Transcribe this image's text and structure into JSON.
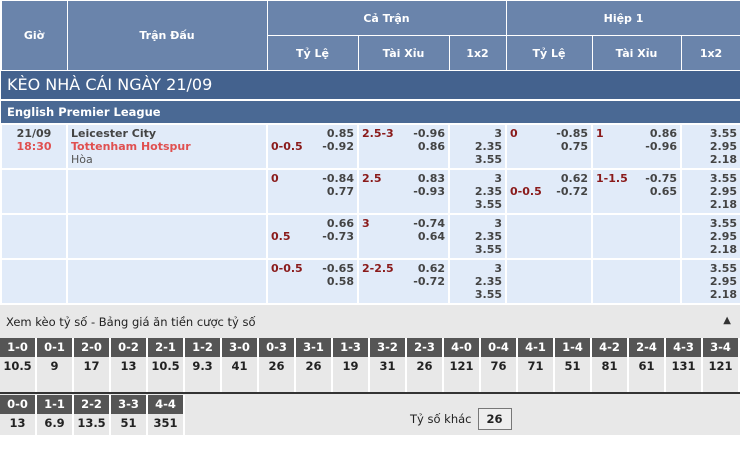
{
  "header": {
    "gio": "Giờ",
    "tran_dau": "Trận Đấu",
    "ca_tran": "Cả Trận",
    "hiep1": "Hiệp 1",
    "ty_le": "Tỷ Lệ",
    "tai_xiu": "Tài Xỉu",
    "x12": "1x2"
  },
  "title": "KÈO NHÀ CÁI NGÀY 21/09",
  "league": "English Premier League",
  "match": {
    "date": "21/09",
    "time": "18:30",
    "home": "Leicester City",
    "away": "Tottenham Hotspur",
    "draw": "Hòa"
  },
  "rows": [
    {
      "ft_hdp": "0-0.5",
      "ft_hdp_line": 2,
      "ft_hdp_odds": [
        "0.85",
        "-0.92"
      ],
      "ft_ou": "2.5-3",
      "ft_ou_odds": [
        "-0.96",
        "0.86"
      ],
      "ft_1x2": [
        "3",
        "2.35",
        "3.55"
      ],
      "h1_hdp": "0",
      "h1_hdp_line": 1,
      "h1_hdp_odds": [
        "-0.85",
        "0.75"
      ],
      "h1_ou": "1",
      "h1_ou_odds": [
        "0.86",
        "-0.96"
      ],
      "h1_1x2": [
        "3.55",
        "2.95",
        "2.18"
      ]
    },
    {
      "ft_hdp": "0",
      "ft_hdp_line": 1,
      "ft_hdp_odds": [
        "-0.84",
        "0.77"
      ],
      "ft_ou": "2.5",
      "ft_ou_odds": [
        "0.83",
        "-0.93"
      ],
      "ft_1x2": [
        "3",
        "2.35",
        "3.55"
      ],
      "h1_hdp": "0-0.5",
      "h1_hdp_line": 2,
      "h1_hdp_odds": [
        "0.62",
        "-0.72"
      ],
      "h1_ou": "1-1.5",
      "h1_ou_odds": [
        "-0.75",
        "0.65"
      ],
      "h1_1x2": [
        "3.55",
        "2.95",
        "2.18"
      ]
    },
    {
      "ft_hdp": "0.5",
      "ft_hdp_line": 2,
      "ft_hdp_odds": [
        "0.66",
        "-0.73"
      ],
      "ft_ou": "3",
      "ft_ou_odds": [
        "-0.74",
        "0.64"
      ],
      "ft_1x2": [
        "3",
        "2.35",
        "3.55"
      ],
      "h1_hdp": "",
      "h1_hdp_line": 1,
      "h1_hdp_odds": [
        "",
        ""
      ],
      "h1_ou": "",
      "h1_ou_odds": [
        "",
        ""
      ],
      "h1_1x2": [
        "3.55",
        "2.95",
        "2.18"
      ]
    },
    {
      "ft_hdp": "0-0.5",
      "ft_hdp_line": 1,
      "ft_hdp_odds": [
        "-0.65",
        "0.58"
      ],
      "ft_ou": "2-2.5",
      "ft_ou_odds": [
        "0.62",
        "-0.72"
      ],
      "ft_1x2": [
        "3",
        "2.35",
        "3.55"
      ],
      "h1_hdp": "",
      "h1_hdp_line": 1,
      "h1_hdp_odds": [
        "",
        ""
      ],
      "h1_ou": "",
      "h1_ou_odds": [
        "",
        ""
      ],
      "h1_1x2": [
        "3.55",
        "2.95",
        "2.18"
      ]
    }
  ],
  "scores": {
    "title": "Xem kèo tỷ số - Bảng giá ăn tiền cược tỷ số",
    "toggle_icon": "triangle-up",
    "row1": [
      [
        "1-0",
        "10.5"
      ],
      [
        "0-1",
        "9"
      ],
      [
        "2-0",
        "17"
      ],
      [
        "0-2",
        "13"
      ],
      [
        "2-1",
        "10.5"
      ],
      [
        "1-2",
        "9.3"
      ],
      [
        "3-0",
        "41"
      ],
      [
        "0-3",
        "26"
      ],
      [
        "3-1",
        "26"
      ],
      [
        "1-3",
        "19"
      ],
      [
        "3-2",
        "31"
      ],
      [
        "2-3",
        "26"
      ],
      [
        "4-0",
        "121"
      ],
      [
        "0-4",
        "76"
      ],
      [
        "4-1",
        "71"
      ],
      [
        "1-4",
        "51"
      ],
      [
        "4-2",
        "81"
      ],
      [
        "2-4",
        "61"
      ],
      [
        "4-3",
        "131"
      ],
      [
        "3-4",
        "121"
      ]
    ],
    "row2": [
      [
        "0-0",
        "13"
      ],
      [
        "1-1",
        "6.9"
      ],
      [
        "2-2",
        "13.5"
      ],
      [
        "3-3",
        "51"
      ],
      [
        "4-4",
        "351"
      ]
    ],
    "other_label": "Tỷ số khác",
    "other_value": "26"
  }
}
